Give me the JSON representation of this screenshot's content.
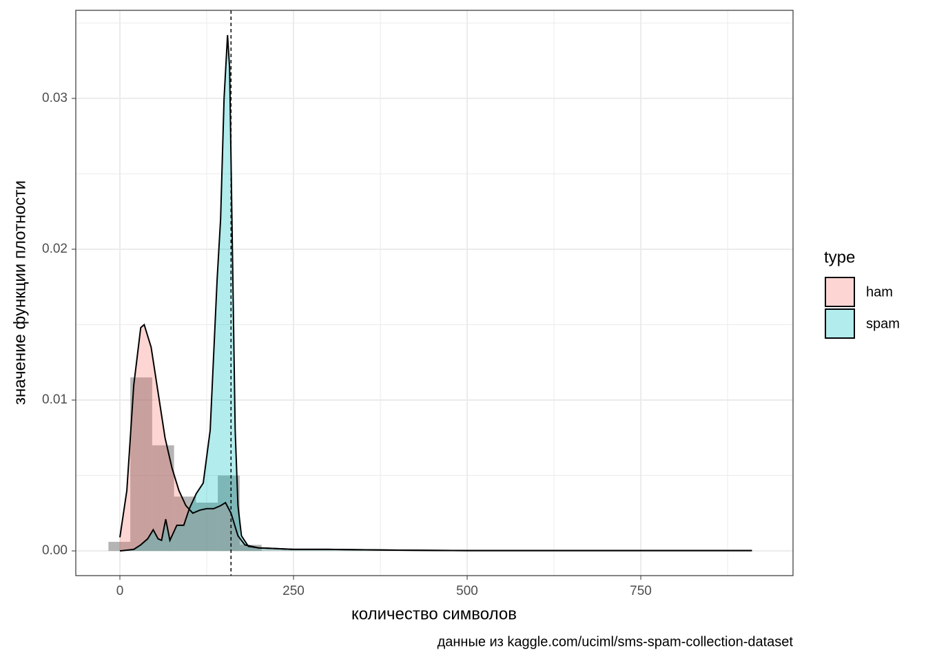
{
  "chart_data": {
    "type": "density",
    "xlabel": "количество символов",
    "ylabel": "значение функции плотности",
    "caption": "данные из kaggle.com/uciml/sms-spam-collection-dataset",
    "legend_title": "type",
    "legend_position": "right",
    "xlim": [
      -63.5,
      969.2
    ],
    "ylim": [
      -0.00164,
      0.03584
    ],
    "xticks": [
      0,
      250,
      500,
      750
    ],
    "yticks": [
      {
        "value": 0,
        "label": "0.00"
      },
      0.01,
      0.02,
      0.03
    ],
    "x_minor_grid": [
      125,
      375,
      625,
      875
    ],
    "y_minor_grid": [
      0.005,
      0.015,
      0.025,
      0.035
    ],
    "grid": true,
    "vline": 160,
    "histogram": {
      "color": "#595959",
      "bins": [
        -16.5,
        15,
        46.5,
        78,
        109.5,
        141,
        172.5,
        204
      ],
      "values": [
        0.0006,
        0.0115,
        0.007,
        0.0036,
        0.0032,
        0.005,
        0.0004
      ]
    },
    "series": [
      {
        "name": "ham",
        "color": "#F8766D",
        "x": [
          0,
          10,
          20,
          30,
          35,
          45,
          55,
          65,
          75,
          85,
          95,
          105,
          115,
          125,
          135,
          145,
          152,
          160,
          170,
          180,
          200,
          250,
          300,
          400,
          500,
          600,
          700,
          800,
          910
        ],
        "values": [
          0.0009,
          0.004,
          0.011,
          0.0148,
          0.015,
          0.0135,
          0.0105,
          0.0075,
          0.0055,
          0.004,
          0.003,
          0.0025,
          0.0027,
          0.0028,
          0.0028,
          0.003,
          0.0032,
          0.0025,
          0.001,
          0.0004,
          0.0002,
          0.0001,
          0.0001,
          5e-05,
          2e-05,
          2e-05,
          2e-05,
          2e-05,
          2e-05
        ]
      },
      {
        "name": "spam",
        "color": "#00BFC4",
        "x": [
          0,
          20,
          30,
          40,
          48,
          55,
          60,
          66,
          72,
          82,
          92,
          100,
          110,
          120,
          130,
          135,
          140,
          145,
          150,
          155,
          158,
          162,
          166,
          170,
          175,
          185,
          200,
          250,
          300,
          400,
          500,
          600,
          700,
          800,
          910
        ],
        "values": [
          0,
          0.0001,
          0.0004,
          0.0008,
          0.0014,
          0.0008,
          0.0007,
          0.0021,
          0.0007,
          0.0017,
          0.0017,
          0.0028,
          0.0038,
          0.0045,
          0.008,
          0.013,
          0.018,
          0.022,
          0.03,
          0.0342,
          0.032,
          0.02,
          0.008,
          0.003,
          0.001,
          0.0003,
          0.0002,
          0.0001,
          0.0001,
          5e-05,
          2e-05,
          2e-05,
          2e-05,
          2e-05,
          2e-05
        ]
      }
    ]
  }
}
